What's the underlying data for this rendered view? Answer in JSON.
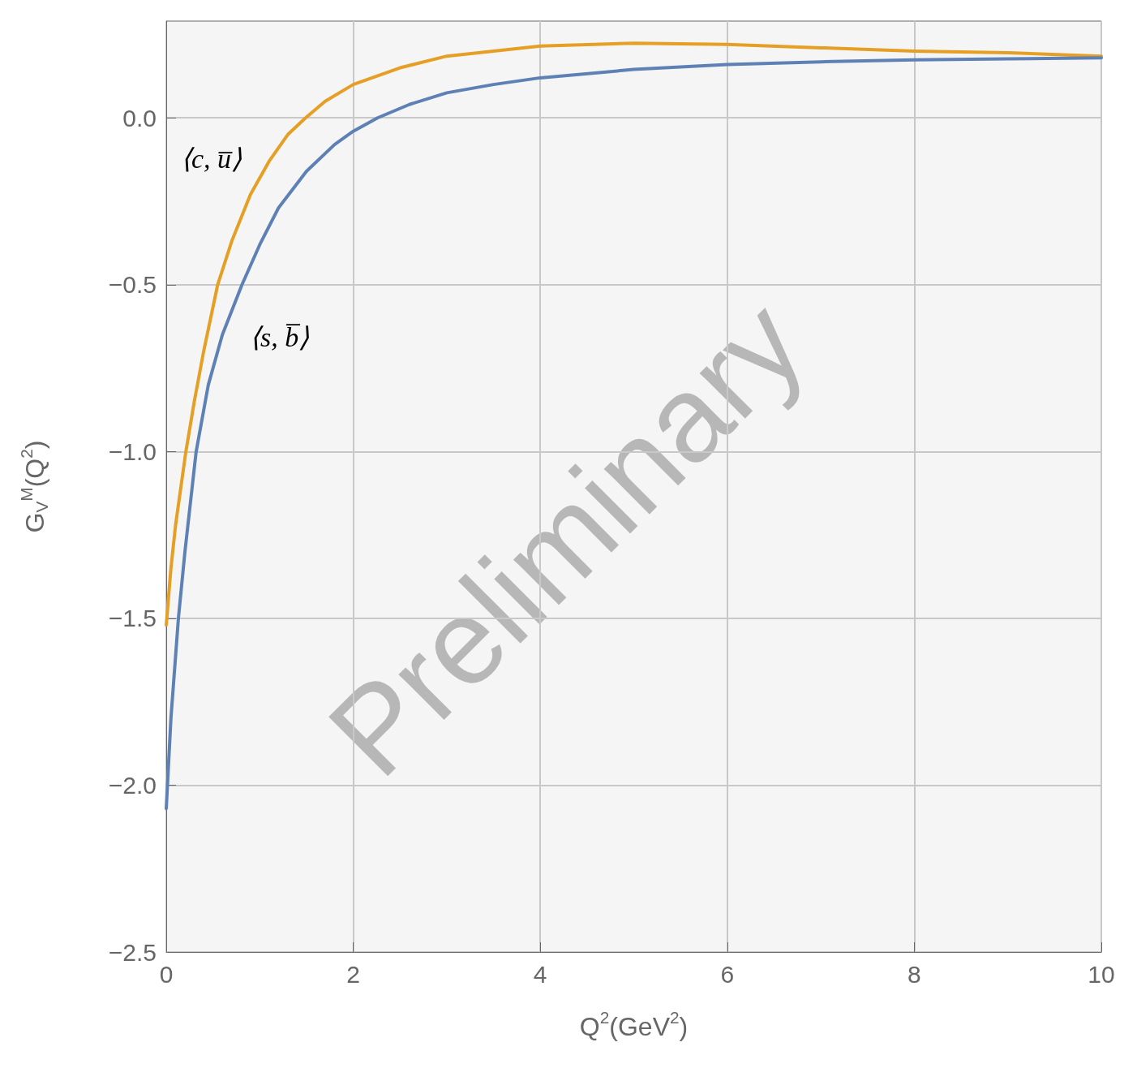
{
  "chart_data": {
    "type": "line",
    "xlabel": "Q$^{2}$(GeV$^{2}$)",
    "ylabel": "G$_{V}$$^{M}$(Q$^{2}$)",
    "xlim": [
      0,
      10
    ],
    "xticks": [
      0,
      2,
      4,
      6,
      8,
      10
    ],
    "ylim": [
      -2.5,
      0.29
    ],
    "yticks": [
      {
        "value": -2.5,
        "label": "−2.5"
      },
      {
        "value": -2,
        "label": "−2.0"
      },
      {
        "value": -1.5,
        "label": "−1.5"
      },
      {
        "value": -1,
        "label": "−1.0"
      },
      {
        "value": -0.5,
        "label": "−0.5"
      },
      {
        "value": 0,
        "label": "0.0"
      }
    ],
    "grid": true,
    "legend": false,
    "marker": "none",
    "line_style": "solid",
    "series": [
      {
        "name": "⟨c, u̅⟩",
        "color": "#e69f25",
        "x": [
          0,
          0.05,
          0.1,
          0.21,
          0.3,
          0.4,
          0.55,
          0.7,
          0.9,
          1.1,
          1.3,
          1.49,
          1.7,
          2,
          2.5,
          3,
          4,
          5,
          6,
          7,
          8,
          9,
          10
        ],
        "values": [
          -1.52,
          -1.35,
          -1.22,
          -1.0,
          -0.85,
          -0.7,
          -0.5,
          -0.37,
          -0.23,
          -0.13,
          -0.05,
          0,
          0.05,
          0.1,
          0.15,
          0.185,
          0.215,
          0.224,
          0.22,
          0.21,
          0.2,
          0.195,
          0.185
        ]
      },
      {
        "name": "⟨s, b̅⟩",
        "color": "#5e81b5",
        "x": [
          0,
          0.05,
          0.13,
          0.2,
          0.32,
          0.45,
          0.6,
          0.81,
          1.0,
          1.2,
          1.5,
          1.8,
          2,
          2.26,
          2.6,
          3,
          3.5,
          4,
          5,
          6,
          7,
          8,
          9,
          10
        ],
        "values": [
          -2.07,
          -1.8,
          -1.5,
          -1.3,
          -1.0,
          -0.8,
          -0.65,
          -0.5,
          -0.38,
          -0.27,
          -0.16,
          -0.08,
          -0.04,
          0,
          0.04,
          0.075,
          0.1,
          0.12,
          0.145,
          0.16,
          0.168,
          0.174,
          0.177,
          0.18
        ]
      }
    ],
    "annotations": [
      "Preliminary"
    ]
  }
}
